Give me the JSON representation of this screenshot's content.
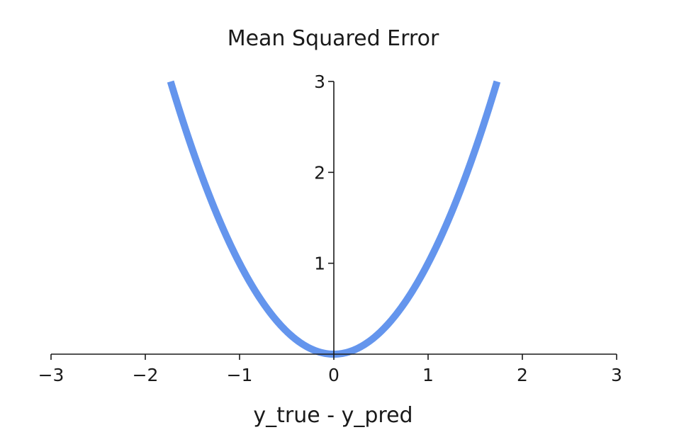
{
  "chart_data": {
    "type": "line",
    "title": "Mean Squared Error",
    "xlabel": "y_true - y_pred",
    "ylabel": "",
    "xlim": [
      -3,
      3
    ],
    "ylim": [
      0,
      3
    ],
    "x_ticks": [
      -3,
      -2,
      -1,
      0,
      1,
      2,
      3
    ],
    "x_tick_labels": [
      "−3",
      "−2",
      "−1",
      "0",
      "1",
      "2",
      "3"
    ],
    "y_ticks": [
      1,
      2,
      3
    ],
    "y_tick_labels": [
      "1",
      "2",
      "3"
    ],
    "spines": "centered-zero",
    "grid": false,
    "series": [
      {
        "function": "x^2",
        "color": "#6495ed",
        "x": [
          -1.732,
          -1.5,
          -1.25,
          -1.0,
          -0.75,
          -0.5,
          -0.25,
          0,
          0.25,
          0.5,
          0.75,
          1.0,
          1.25,
          1.5,
          1.732
        ],
        "y": [
          3.0,
          2.25,
          1.5625,
          1.0,
          0.5625,
          0.25,
          0.0625,
          0,
          0.0625,
          0.25,
          0.5625,
          1.0,
          1.5625,
          2.25,
          3.0
        ]
      }
    ]
  }
}
